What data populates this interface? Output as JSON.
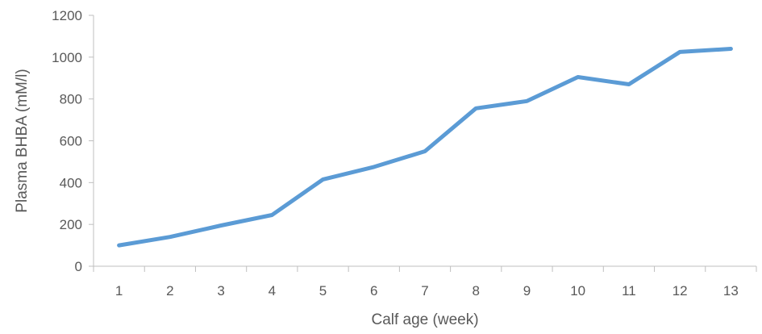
{
  "chart_data": {
    "type": "line",
    "title": "",
    "xlabel": "Calf age (week)",
    "ylabel": "Plasma BHBA (mM/l)",
    "categories": [
      "1",
      "2",
      "3",
      "4",
      "5",
      "6",
      "7",
      "8",
      "9",
      "10",
      "11",
      "12",
      "13"
    ],
    "y_ticks": [
      "0",
      "200",
      "400",
      "600",
      "800",
      "1000",
      "1200"
    ],
    "ylim": [
      0,
      1200
    ],
    "grid": false,
    "legend": "none",
    "series": [
      {
        "color": "#5b9bd5",
        "values": [
          100,
          140,
          195,
          245,
          415,
          475,
          550,
          755,
          790,
          905,
          870,
          1025,
          1040
        ]
      }
    ]
  }
}
